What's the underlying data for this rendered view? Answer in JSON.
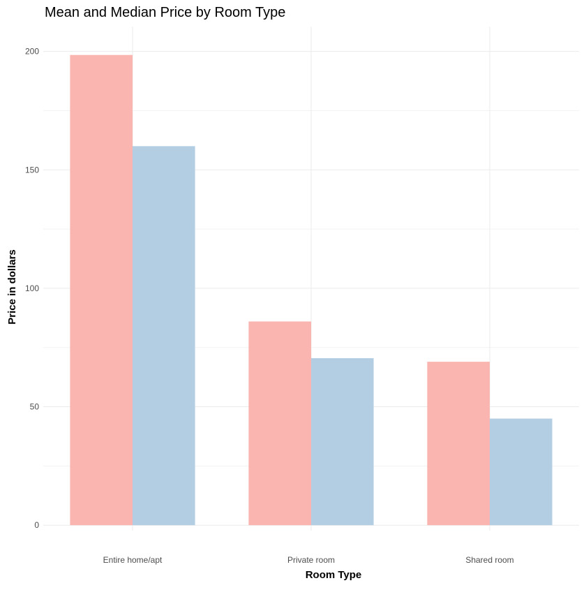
{
  "chart_data": {
    "type": "bar",
    "title": "Mean and Median Price by Room Type",
    "xlabel": "Room Type",
    "ylabel": "Price in dollars",
    "categories": [
      "Entire home/apt",
      "Private room",
      "Shared room"
    ],
    "series": [
      {
        "values": [
          198.5,
          86,
          69
        ],
        "color": "#fab5b0"
      },
      {
        "values": [
          160,
          70.5,
          45
        ],
        "color": "#b3cde3"
      }
    ],
    "ylim": [
      -2.3,
      210.5
    ],
    "yticks": [
      0,
      50,
      100,
      150,
      200
    ],
    "grid": true,
    "legend": "none"
  }
}
